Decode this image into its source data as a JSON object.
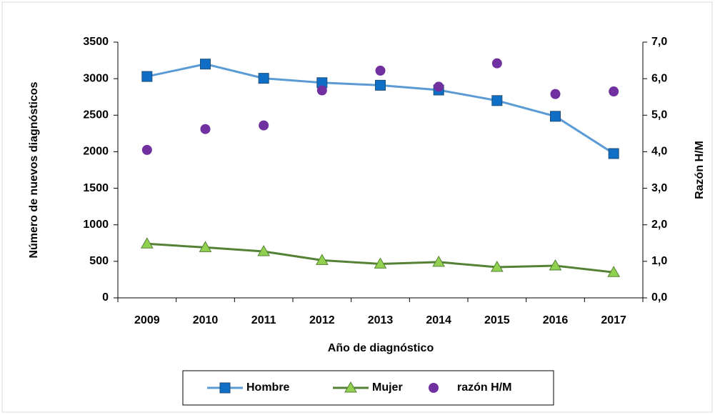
{
  "chart_data": {
    "type": "line",
    "x_label": "Año de diagnóstico",
    "y_label": "Número de nuevos diagnósticos",
    "y2_label": "Razón H/M",
    "categories": [
      "2009",
      "2010",
      "2011",
      "2012",
      "2013",
      "2014",
      "2015",
      "2016",
      "2017"
    ],
    "series": [
      {
        "name": "Hombre",
        "color": "#5b9bd5",
        "marker_color": "#0f6fc6",
        "marker": "square",
        "line": true,
        "values": [
          3030,
          3200,
          3005,
          2945,
          2910,
          2845,
          2700,
          2485,
          1975
        ]
      },
      {
        "name": "Mujer",
        "color": "#548235",
        "marker_color": "#92d050",
        "marker": "triangle",
        "line": true,
        "values": [
          740,
          690,
          635,
          515,
          465,
          490,
          420,
          440,
          350
        ]
      },
      {
        "name": "razón H/M",
        "color": "#7030a0",
        "marker_color": "#7030a0",
        "marker": "circle",
        "line": false,
        "axis": "y2",
        "values": [
          4.05,
          4.62,
          4.72,
          5.68,
          6.22,
          5.78,
          6.42,
          5.58,
          5.65
        ]
      }
    ],
    "ylim": [
      0,
      3500
    ],
    "yticks": [
      0,
      500,
      1000,
      1500,
      2000,
      2500,
      3000,
      3500
    ],
    "y2lim": [
      0,
      7
    ],
    "y2ticks": [
      {
        "value": 0,
        "label": "0,0"
      },
      {
        "value": 1,
        "label": "1,0"
      },
      {
        "value": 2,
        "label": "2,0"
      },
      {
        "value": 3,
        "label": "3,0"
      },
      {
        "value": 4,
        "label": "4,0"
      },
      {
        "value": 5,
        "label": "5,0"
      },
      {
        "value": 6,
        "label": "6,0"
      },
      {
        "value": 7,
        "label": "7,0"
      }
    ],
    "grid": false,
    "legend": "bottom"
  }
}
